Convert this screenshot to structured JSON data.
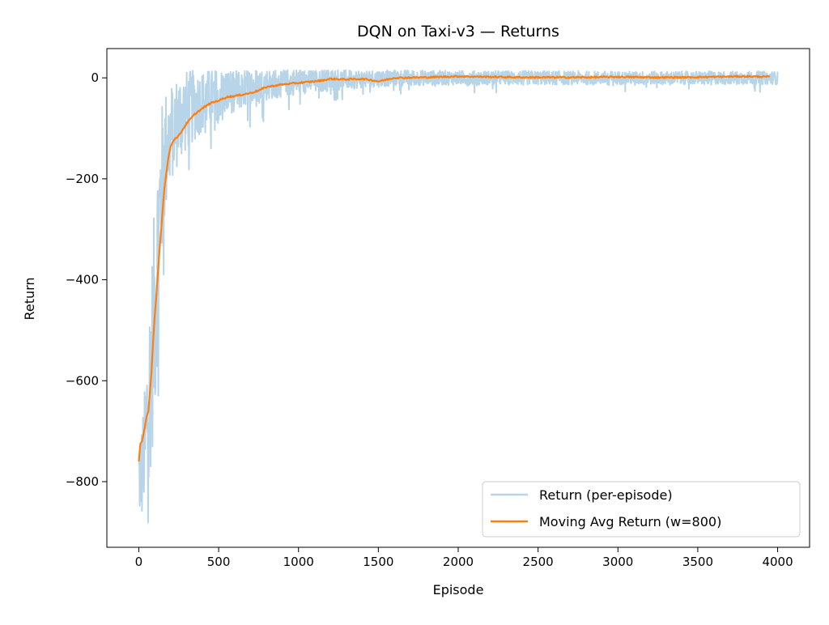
{
  "chart_data": {
    "type": "line",
    "title": "DQN on Taxi-v3 — Returns",
    "xlabel": "Episode",
    "ylabel": "Return",
    "xlim": [
      -200,
      4200
    ],
    "ylim": [
      -930,
      58
    ],
    "xticks": [
      0,
      500,
      1000,
      1500,
      2000,
      2500,
      3000,
      3500,
      4000
    ],
    "xtick_labels": [
      "0",
      "500",
      "1000",
      "1500",
      "2000",
      "2500",
      "3000",
      "3500",
      "4000"
    ],
    "yticks": [
      -800,
      -600,
      -400,
      -200,
      0
    ],
    "ytick_labels": [
      "−800",
      "−600",
      "−400",
      "−200",
      "0"
    ],
    "grid": false,
    "legend_position": "lower right",
    "series": [
      {
        "name": "Return (per-episode)",
        "color": "#b8d4e8",
        "style": "noisy",
        "x": [
          0,
          20,
          40,
          60,
          80,
          100,
          120,
          140,
          160,
          180,
          200,
          220,
          250,
          300,
          350,
          400,
          450,
          500,
          600,
          700,
          800,
          900,
          1000,
          1100,
          1200,
          1300,
          1400,
          1500,
          1600,
          1800,
          2000,
          2500,
          3000,
          3500,
          4000
        ],
        "values": [
          -790,
          -780,
          -720,
          -640,
          -560,
          -460,
          -330,
          -220,
          -160,
          -130,
          -110,
          -100,
          -80,
          -65,
          -55,
          -45,
          -38,
          -32,
          -25,
          -18,
          -13,
          -10,
          -7,
          -5,
          -4,
          -3,
          -2,
          -1,
          0,
          0,
          0,
          0,
          0,
          0,
          0
        ],
        "amplitude": [
          90,
          100,
          120,
          180,
          200,
          220,
          200,
          160,
          140,
          110,
          100,
          95,
          90,
          80,
          70,
          60,
          55,
          50,
          42,
          36,
          32,
          28,
          26,
          24,
          22,
          20,
          18,
          17,
          16,
          15,
          14,
          14,
          13,
          13,
          13
        ]
      },
      {
        "name": "Moving Avg Return (w=800)",
        "color": "#ff7f0e",
        "style": "line",
        "x": [
          0,
          10,
          20,
          30,
          50,
          60,
          70,
          80,
          90,
          100,
          110,
          120,
          130,
          140,
          150,
          160,
          170,
          180,
          190,
          200,
          220,
          250,
          300,
          350,
          400,
          450,
          500,
          550,
          600,
          650,
          700,
          750,
          800,
          900,
          1000,
          1100,
          1150,
          1200,
          1300,
          1400,
          1450,
          1500,
          1600,
          1800,
          2000,
          2200,
          2400,
          2600,
          2800,
          3000,
          3200,
          3400,
          3600,
          3800,
          3950
        ],
        "values": [
          -760,
          -725,
          -720,
          -705,
          -670,
          -660,
          -620,
          -580,
          -520,
          -470,
          -430,
          -385,
          -340,
          -300,
          -260,
          -220,
          -195,
          -170,
          -150,
          -135,
          -122,
          -115,
          -90,
          -72,
          -60,
          -50,
          -45,
          -38,
          -36,
          -33,
          -30,
          -25,
          -18,
          -13,
          -10,
          -7,
          -5,
          -2,
          -3,
          -2,
          -4,
          -7,
          0,
          1,
          3,
          2,
          1,
          1,
          1,
          2,
          1,
          1,
          2,
          3,
          2
        ]
      }
    ]
  }
}
